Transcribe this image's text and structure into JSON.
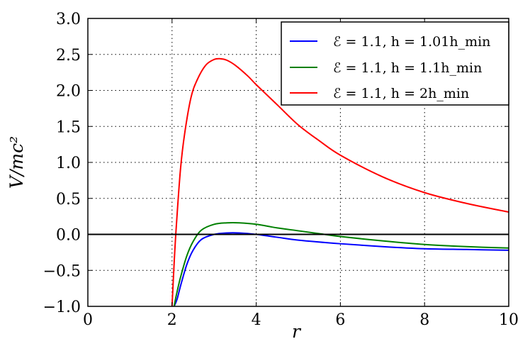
{
  "chart_data": {
    "type": "line",
    "xlabel": "r",
    "ylabel": "V/mc²",
    "xlim": [
      0,
      10
    ],
    "ylim": [
      -1.0,
      3.0
    ],
    "xticks": [
      "0",
      "2",
      "4",
      "6",
      "8",
      "10"
    ],
    "yticks": [
      "−1.0",
      "−0.5",
      "0.0",
      "0.5",
      "1.0",
      "1.5",
      "2.0",
      "2.5",
      "3.0"
    ],
    "grid": true,
    "legend_position": "top-right",
    "hline": 0.0,
    "series": [
      {
        "name": "ℰ = 1.1, h = 1.01h_min",
        "color": "#0000ff",
        "x": [
          2.05,
          2.12,
          2.2,
          2.35,
          2.5,
          2.7,
          3.0,
          3.3,
          3.6,
          4.0,
          4.5,
          5.0,
          6.0,
          7.0,
          8.0,
          9.0,
          10.0
        ],
        "y": [
          -1.0,
          -0.9,
          -0.72,
          -0.42,
          -0.22,
          -0.07,
          0.0,
          0.02,
          0.02,
          0.0,
          -0.04,
          -0.08,
          -0.13,
          -0.17,
          -0.2,
          -0.21,
          -0.22
        ]
      },
      {
        "name": "ℰ = 1.1, h = 1.1h_min",
        "color": "#008000",
        "x": [
          2.05,
          2.1,
          2.2,
          2.35,
          2.5,
          2.7,
          3.0,
          3.3,
          3.6,
          4.0,
          4.5,
          5.0,
          5.5,
          6.0,
          7.0,
          8.0,
          9.0,
          10.0
        ],
        "y": [
          -1.0,
          -0.85,
          -0.6,
          -0.3,
          -0.1,
          0.06,
          0.14,
          0.16,
          0.16,
          0.14,
          0.09,
          0.05,
          0.01,
          -0.03,
          -0.09,
          -0.14,
          -0.17,
          -0.19
        ]
      },
      {
        "name": "ℰ = 1.1, h = 2h_min",
        "color": "#ff0000",
        "x": [
          2.0,
          2.05,
          2.1,
          2.2,
          2.3,
          2.45,
          2.6,
          2.8,
          3.0,
          3.15,
          3.3,
          3.5,
          3.8,
          4.0,
          4.5,
          5.0,
          5.5,
          6.0,
          7.0,
          8.0,
          9.0,
          10.0
        ],
        "y": [
          -1.0,
          -0.4,
          0.1,
          0.9,
          1.4,
          1.9,
          2.15,
          2.35,
          2.43,
          2.44,
          2.42,
          2.35,
          2.2,
          2.08,
          1.8,
          1.52,
          1.3,
          1.1,
          0.8,
          0.58,
          0.43,
          0.31
        ]
      }
    ]
  }
}
